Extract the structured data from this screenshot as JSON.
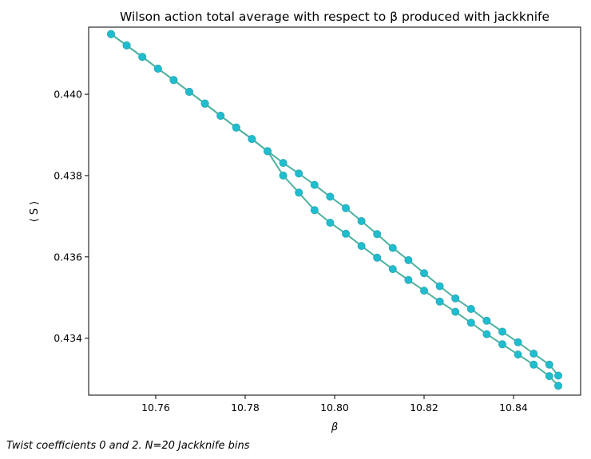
{
  "caption": "Twist coefficients 0 and 2. N=20 Jackknife bins",
  "chart_data": {
    "type": "line",
    "title": "Wilson action total average with respect to β produced with jackknife",
    "xlabel": "β",
    "ylabel": "⟨ S ⟩",
    "xlim": [
      10.745,
      10.855
    ],
    "ylim": [
      0.4326,
      0.44165
    ],
    "xticks": [
      10.76,
      10.78,
      10.8,
      10.82,
      10.84
    ],
    "xtick_labels": [
      "10.76",
      "10.78",
      "10.80",
      "10.82",
      "10.84"
    ],
    "yticks": [
      0.434,
      0.436,
      0.438,
      0.44
    ],
    "ytick_labels": [
      "0.434",
      "0.436",
      "0.438",
      "0.440"
    ],
    "grid": false,
    "legend": "none",
    "colors": {
      "line": "#4db2a0",
      "marker": "#1fbdce",
      "marker_edge": "#2ba7b5",
      "accent": "#d34f45"
    },
    "series": [
      {
        "x": [
          10.75,
          10.7535,
          10.757,
          10.7605,
          10.764,
          10.7675,
          10.771,
          10.7745,
          10.778,
          10.7815,
          10.785,
          10.7885,
          10.792,
          10.7955,
          10.799,
          10.8025,
          10.806,
          10.8095,
          10.813,
          10.8165,
          10.82,
          10.8235,
          10.827,
          10.8305,
          10.834,
          10.8375,
          10.841,
          10.8445,
          10.848,
          10.85
        ],
        "values": [
          0.44148,
          0.4412,
          0.44092,
          0.44063,
          0.44035,
          0.44006,
          0.43977,
          0.43947,
          0.43918,
          0.4389,
          0.4386,
          0.43831,
          0.43805,
          0.43777,
          0.43748,
          0.4372,
          0.43688,
          0.43656,
          0.43622,
          0.43592,
          0.4356,
          0.43528,
          0.43498,
          0.43472,
          0.43443,
          0.43416,
          0.4339,
          0.43362,
          0.43335,
          0.43308
        ]
      },
      {
        "x": [
          10.75,
          10.7535,
          10.757,
          10.7605,
          10.764,
          10.7675,
          10.771,
          10.7745,
          10.778,
          10.7815,
          10.785,
          10.7885,
          10.792,
          10.7955,
          10.799,
          10.8025,
          10.806,
          10.8095,
          10.813,
          10.8165,
          10.82,
          10.8235,
          10.827,
          10.8305,
          10.834,
          10.8375,
          10.841,
          10.8445,
          10.848,
          10.85
        ],
        "values": [
          0.44148,
          0.4412,
          0.44092,
          0.44063,
          0.44035,
          0.44006,
          0.43977,
          0.43947,
          0.43918,
          0.4389,
          0.4386,
          0.438,
          0.43758,
          0.43715,
          0.43684,
          0.43657,
          0.43627,
          0.43598,
          0.4357,
          0.43543,
          0.43517,
          0.4349,
          0.43465,
          0.43438,
          0.4341,
          0.43385,
          0.4336,
          0.43335,
          0.43307,
          0.43283
        ]
      }
    ]
  }
}
